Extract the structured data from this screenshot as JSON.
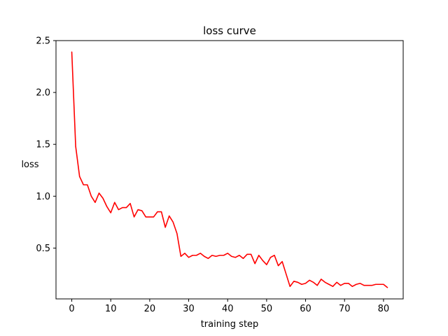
{
  "chart_data": {
    "type": "line",
    "title": "loss curve",
    "xlabel": "training step",
    "ylabel": "loss",
    "xlim": [
      -4.05,
      85.05
    ],
    "ylim": [
      0.01,
      2.5
    ],
    "xticks": [
      0,
      10,
      20,
      30,
      40,
      50,
      60,
      70,
      80
    ],
    "yticks": [
      0.5,
      1.0,
      1.5,
      2.0,
      2.5
    ],
    "xtick_labels": [
      "0",
      "10",
      "20",
      "30",
      "40",
      "50",
      "60",
      "70",
      "80"
    ],
    "ytick_labels": [
      "0.5",
      "1.0",
      "1.5",
      "2.0",
      "2.5"
    ],
    "grid": false,
    "legend": null,
    "series": [
      {
        "color": "#ff0000",
        "x": [
          0,
          1,
          2,
          3,
          4,
          5,
          6,
          7,
          8,
          9,
          10,
          11,
          12,
          13,
          14,
          15,
          16,
          17,
          18,
          19,
          20,
          21,
          22,
          23,
          24,
          25,
          26,
          27,
          28,
          29,
          30,
          31,
          32,
          33,
          34,
          35,
          36,
          37,
          38,
          39,
          40,
          41,
          42,
          43,
          44,
          45,
          46,
          47,
          48,
          49,
          50,
          51,
          52,
          53,
          54,
          55,
          56,
          57,
          58,
          59,
          60,
          61,
          62,
          63,
          64,
          65,
          66,
          67,
          68,
          69,
          70,
          71,
          72,
          73,
          74,
          75,
          76,
          77,
          78,
          79,
          80,
          81
        ],
        "y": [
          2.39,
          1.48,
          1.19,
          1.11,
          1.11,
          1.0,
          0.94,
          1.03,
          0.98,
          0.9,
          0.84,
          0.94,
          0.87,
          0.89,
          0.89,
          0.93,
          0.8,
          0.87,
          0.86,
          0.8,
          0.8,
          0.8,
          0.85,
          0.85,
          0.7,
          0.81,
          0.75,
          0.64,
          0.42,
          0.45,
          0.41,
          0.43,
          0.43,
          0.45,
          0.42,
          0.4,
          0.43,
          0.42,
          0.43,
          0.43,
          0.45,
          0.42,
          0.41,
          0.43,
          0.4,
          0.44,
          0.44,
          0.35,
          0.43,
          0.38,
          0.34,
          0.41,
          0.43,
          0.33,
          0.37,
          0.25,
          0.13,
          0.18,
          0.17,
          0.15,
          0.16,
          0.19,
          0.17,
          0.14,
          0.2,
          0.17,
          0.15,
          0.13,
          0.17,
          0.14,
          0.16,
          0.16,
          0.13,
          0.15,
          0.16,
          0.14,
          0.14,
          0.14,
          0.15,
          0.15,
          0.15,
          0.12
        ]
      }
    ]
  }
}
